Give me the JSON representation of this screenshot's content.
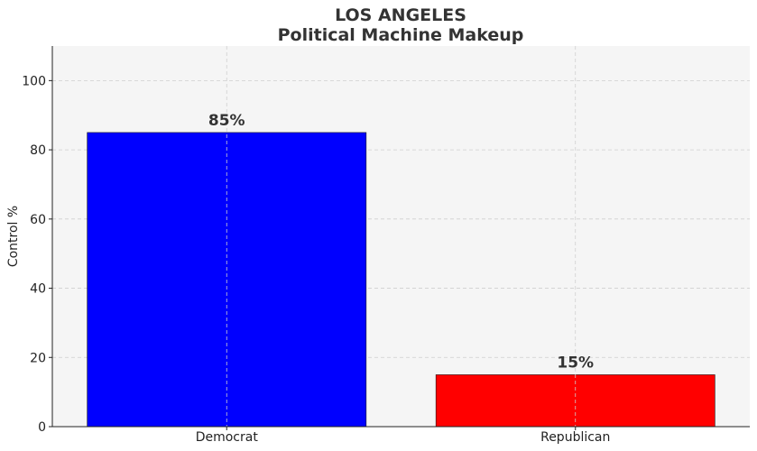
{
  "chart_data": {
    "type": "bar",
    "title": "LOS ANGELES",
    "subtitle": "Political Machine Makeup",
    "xlabel": "",
    "ylabel": "Control %",
    "categories": [
      "Democrat",
      "Republican"
    ],
    "values": [
      85,
      15
    ],
    "data_labels": [
      "85%",
      "15%"
    ],
    "colors": [
      "#0000ff",
      "#ff0000"
    ],
    "ylim": [
      0,
      110
    ],
    "yticks": [
      0,
      20,
      40,
      60,
      80,
      100
    ],
    "grid": true,
    "plot_background": "#f5f5f5"
  }
}
